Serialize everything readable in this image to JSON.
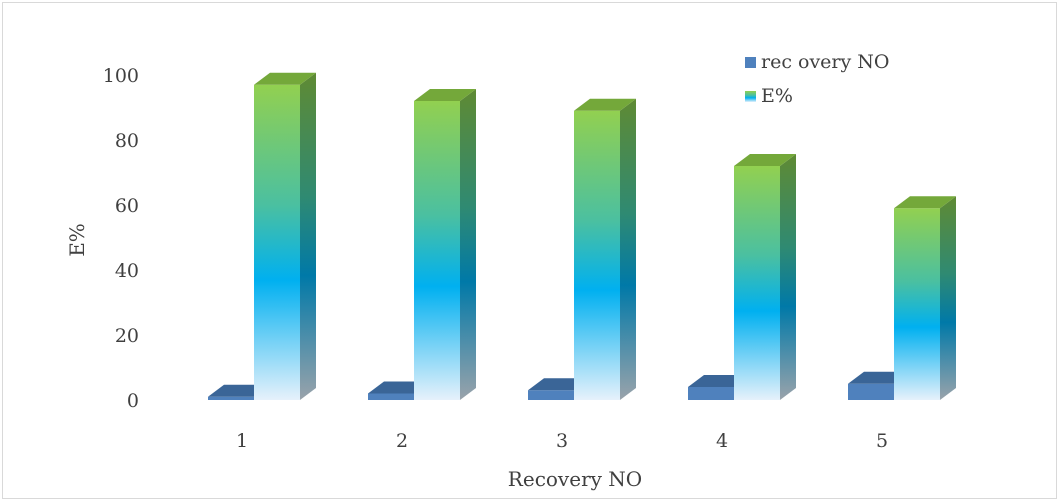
{
  "chart_data": {
    "type": "bar",
    "categories": [
      "1",
      "2",
      "3",
      "4",
      "5"
    ],
    "series": [
      {
        "name": "rec overy NO",
        "values": [
          1,
          2,
          3,
          4,
          5
        ]
      },
      {
        "name": "E%",
        "values": [
          97,
          92,
          89,
          72,
          59
        ]
      }
    ],
    "xlabel": "Recovery NO",
    "ylabel": "E%",
    "ylim": [
      0,
      100
    ],
    "yticks": [
      "0",
      "20",
      "40",
      "60",
      "80",
      "100"
    ],
    "grid": false,
    "legend": "top-right",
    "three_d": true,
    "colors": {
      "recovery_front": "#4f81bd",
      "recovery_top": "#3a6597",
      "recovery_side": "#2f5682",
      "grad_bottom": "#e6f1fb",
      "grad_lower": "#00b0f0",
      "grad_middle": "#4bc0a0",
      "grad_top": "#92d050",
      "e_side": "#5f8a33",
      "e_top": "#74a83a"
    }
  }
}
